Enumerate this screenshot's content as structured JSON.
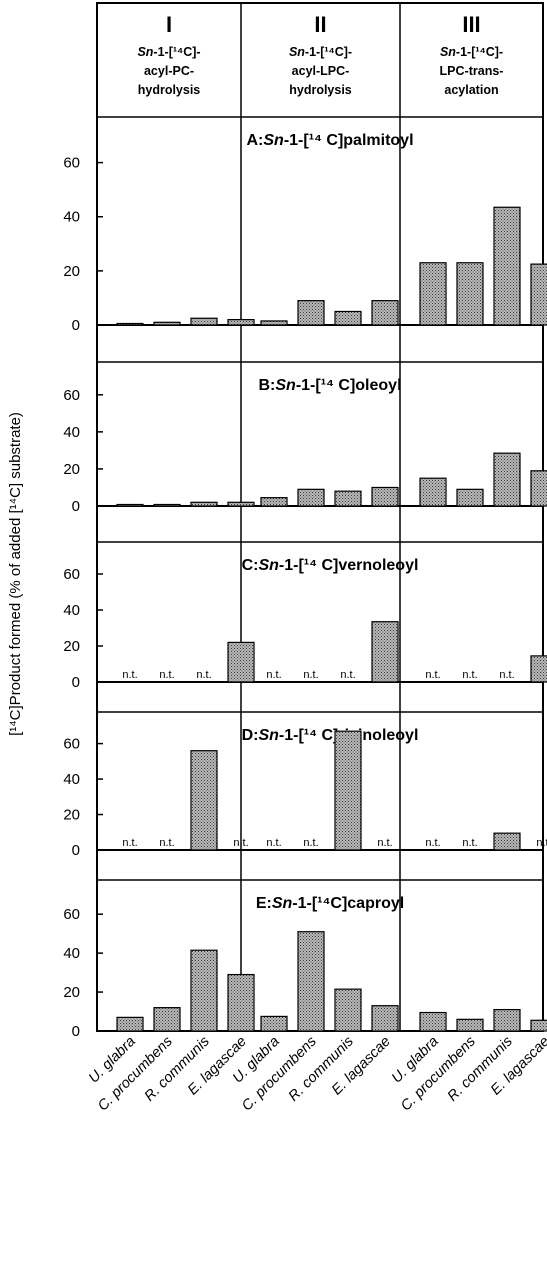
{
  "chart_data": {
    "type": "bar",
    "ylabel": "[¹⁴C]Product formed (% of added [¹⁴C]  substrate)",
    "ylim": [
      0,
      75
    ],
    "yticks": [
      0,
      20,
      40,
      60
    ],
    "categories": [
      "U. glabra",
      "C. procumbens",
      "R. communis",
      "E. lagascae"
    ],
    "na_label": "n.t.",
    "columns": [
      {
        "numeral": "I",
        "lines": [
          "Sn-1-[¹⁴C]-",
          "acyl-PC-",
          "hydrolysis"
        ]
      },
      {
        "numeral": "II",
        "lines": [
          "Sn-1-[¹⁴C]-",
          "acyl-LPC-",
          "hydrolysis"
        ]
      },
      {
        "numeral": "III",
        "lines": [
          "Sn-1-[¹⁴C]-",
          "LPC-trans-",
          "acylation"
        ]
      }
    ],
    "panels": [
      {
        "label": "A:",
        "title": "Sn-1-[¹⁴ C]palmitoyl",
        "values": [
          [
            0.5,
            1,
            2.5,
            2
          ],
          [
            1.5,
            9,
            5,
            9
          ],
          [
            23,
            23,
            43.5,
            22.5
          ]
        ]
      },
      {
        "label": "B:",
        "title": "Sn-1-[¹⁴ C]oleoyl",
        "values": [
          [
            0.5,
            0.5,
            2,
            2
          ],
          [
            4.5,
            9,
            8,
            10
          ],
          [
            15,
            9,
            28.5,
            19
          ]
        ]
      },
      {
        "label": "C:",
        "title": "Sn-1-[¹⁴ C]vernoleoyl",
        "values": [
          [
            null,
            null,
            null,
            22
          ],
          [
            null,
            null,
            null,
            33.5
          ],
          [
            null,
            null,
            null,
            14.5
          ]
        ]
      },
      {
        "label": "D:",
        "title": "Sn-1-[¹⁴ C]ricinoleoyl",
        "values": [
          [
            null,
            null,
            56,
            null
          ],
          [
            null,
            null,
            67,
            null
          ],
          [
            null,
            null,
            9.5,
            null
          ]
        ]
      },
      {
        "label": "E:",
        "title": "Sn-1-[¹⁴C]caproyl",
        "values": [
          [
            7,
            12,
            41.5,
            29
          ],
          [
            7.5,
            51,
            21.5,
            13
          ],
          [
            9.5,
            6,
            11,
            5.5
          ]
        ]
      }
    ]
  }
}
